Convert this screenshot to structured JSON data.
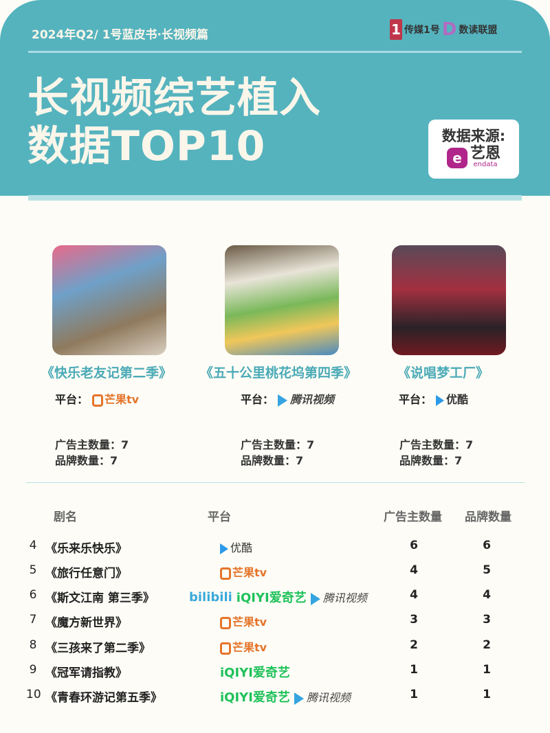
{
  "header": {
    "subtitle": "2024年Q2/ 1号蓝皮书·长视频篇",
    "brand_logo_1": "传媒1号",
    "brand_logo_2": "数读联盟",
    "title_line1": "长视频综艺植入",
    "title_line2": "数据TOP10",
    "source_label": "数据来源:",
    "source_logo_cn": "艺恩",
    "source_logo_en": "endata",
    "color": "#55b3be"
  },
  "platform_label": "平台：",
  "ad_label": "广告主数量：",
  "brand_label": "品牌数量：",
  "platforms": {
    "mango": "芒果tv",
    "tencent": "腾讯视频",
    "youku": "优酷",
    "iqiyi_en": "iQIYI",
    "iqiyi_cn": "爱奇艺",
    "bilibili": "bilibili"
  },
  "top3": [
    {
      "title": "《快乐老友记第二季》",
      "platform": "mango",
      "ad_count": "7",
      "brand_count": "7"
    },
    {
      "title": "《五十公里桃花坞第四季》",
      "platform": "tencent",
      "ad_count": "7",
      "brand_count": "7"
    },
    {
      "title": "《说唱梦工厂》",
      "platform": "youku",
      "ad_count": "7",
      "brand_count": "7"
    }
  ],
  "table": {
    "headers": [
      "剧名",
      "平台",
      "广告主数量",
      "品牌数量"
    ],
    "rows": [
      {
        "rank": "4",
        "title": "《乐来乐快乐》",
        "platforms": [
          "youku"
        ],
        "ad_count": "6",
        "brand_count": "6"
      },
      {
        "rank": "5",
        "title": "《旅行任意门》",
        "platforms": [
          "mango"
        ],
        "ad_count": "4",
        "brand_count": "5"
      },
      {
        "rank": "6",
        "title": "《斯文江南 第三季》",
        "platforms": [
          "bilibili",
          "iqiyi",
          "tencent"
        ],
        "ad_count": "4",
        "brand_count": "4"
      },
      {
        "rank": "7",
        "title": "《魔方新世界》",
        "platforms": [
          "mango"
        ],
        "ad_count": "3",
        "brand_count": "3"
      },
      {
        "rank": "8",
        "title": "《三孩来了第二季》",
        "platforms": [
          "mango"
        ],
        "ad_count": "2",
        "brand_count": "2"
      },
      {
        "rank": "9",
        "title": "《冠军请指教》",
        "platforms": [
          "iqiyi"
        ],
        "ad_count": "1",
        "brand_count": "1"
      },
      {
        "rank": "10",
        "title": "《青春环游记第五季》",
        "platforms": [
          "iqiyi",
          "tencent"
        ],
        "ad_count": "1",
        "brand_count": "1"
      }
    ]
  }
}
